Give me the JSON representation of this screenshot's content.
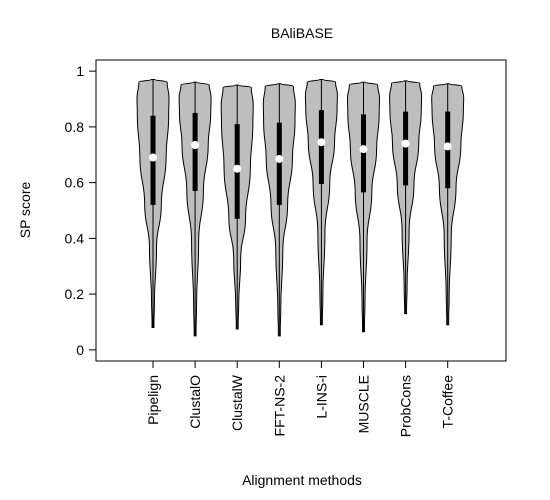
{
  "chart_data": {
    "type": "violin",
    "title": "BAliBASE",
    "xlabel": "Alignment methods",
    "ylabel": "SP score",
    "ylim": [
      -0.04,
      1.04
    ],
    "yticks": [
      "0",
      "0.2",
      "0.4",
      "0.6",
      "0.8",
      "1"
    ],
    "categories": [
      "Pipelign",
      "ClustalO",
      "ClustalW",
      "FFT-NS-2",
      "L-INS-i",
      "MUSCLE",
      "ProbCons",
      "T-Coffee"
    ],
    "colors": {
      "violin_fill": "#bebebe",
      "median_dot": "#ffffff",
      "box": "#000000"
    },
    "series": [
      {
        "min": 0.08,
        "max": 0.97,
        "q1": 0.52,
        "median": 0.69,
        "q3": 0.84
      },
      {
        "min": 0.05,
        "max": 0.96,
        "q1": 0.57,
        "median": 0.735,
        "q3": 0.85
      },
      {
        "min": 0.075,
        "max": 0.95,
        "q1": 0.47,
        "median": 0.65,
        "q3": 0.81
      },
      {
        "min": 0.05,
        "max": 0.955,
        "q1": 0.52,
        "median": 0.685,
        "q3": 0.815
      },
      {
        "min": 0.09,
        "max": 0.97,
        "q1": 0.595,
        "median": 0.745,
        "q3": 0.86
      },
      {
        "min": 0.065,
        "max": 0.96,
        "q1": 0.565,
        "median": 0.72,
        "q3": 0.845
      },
      {
        "min": 0.13,
        "max": 0.965,
        "q1": 0.59,
        "median": 0.74,
        "q3": 0.855
      },
      {
        "min": 0.09,
        "max": 0.955,
        "q1": 0.58,
        "median": 0.73,
        "q3": 0.855
      }
    ]
  }
}
